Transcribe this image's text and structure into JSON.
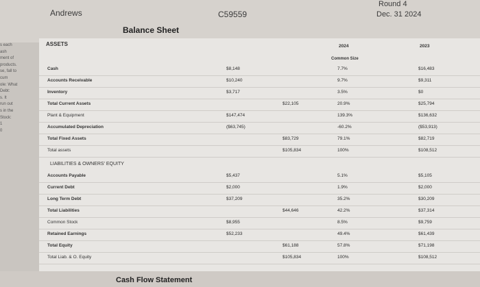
{
  "header": {
    "company": "Andrews",
    "id": "C59559",
    "round": "Round 4",
    "date": "Dec. 31 2024",
    "title": "Balance Sheet"
  },
  "side_fragments": [
    "s each",
    "ash",
    "ment of",
    "products.",
    "se, fall to",
    "cum",
    "ole: What",
    "Debt:",
    "s. It",
    "run out",
    "s in the",
    "Stock:",
    "1",
    "0"
  ],
  "sections": {
    "assets": "ASSETS",
    "liabilities": "LIABILITIES & OWNERS' EQUITY"
  },
  "columns": {
    "year_current": "2024",
    "common_size": "Common Size",
    "year_prior": "2023"
  },
  "rows": [
    {
      "label": "Cash",
      "v1": "$8,148",
      "v2": "",
      "pct": "7.7%",
      "prior": "$16,483"
    },
    {
      "label": "Accounts Receivable",
      "v1": "$10,240",
      "v2": "",
      "pct": "9.7%",
      "prior": "$9,311"
    },
    {
      "label": "Inventory",
      "v1": "$3,717",
      "v2": "",
      "pct": "3.5%",
      "prior": "$0"
    },
    {
      "label": "Total Current Assets",
      "v1": "",
      "v2": "$22,105",
      "pct": "20.9%",
      "prior": "$25,794"
    },
    {
      "label": "Plant & Equipment",
      "v1": "$147,474",
      "v2": "",
      "pct": "139.3%",
      "prior": "$136,632"
    },
    {
      "label": "Accumulated Depreciation",
      "v1": "($63,745)",
      "v2": "",
      "pct": "-60.2%",
      "prior": "($53,913)"
    },
    {
      "label": "Total Fixed Assets",
      "v1": "",
      "v2": "$83,729",
      "pct": "79.1%",
      "prior": "$82,719"
    },
    {
      "label": "Total assets",
      "v1": "",
      "v2": "$105,834",
      "pct": "100%",
      "prior": "$108,512"
    },
    {
      "label": "Accounts Payable",
      "v1": "$5,437",
      "v2": "",
      "pct": "5.1%",
      "prior": "$5,105"
    },
    {
      "label": "Current Debt",
      "v1": "$2,000",
      "v2": "",
      "pct": "1.9%",
      "prior": "$2,000"
    },
    {
      "label": "Long Term Debt",
      "v1": "$37,209",
      "v2": "",
      "pct": "35.2%",
      "prior": "$30,209"
    },
    {
      "label": "Total Liabilities",
      "v1": "",
      "v2": "$44,646",
      "pct": "42.2%",
      "prior": "$37,314"
    },
    {
      "label": "Common Stock",
      "v1": "$8,955",
      "v2": "",
      "pct": "8.5%",
      "prior": "$9,759"
    },
    {
      "label": "Retained Earnings",
      "v1": "$52,233",
      "v2": "",
      "pct": "49.4%",
      "prior": "$61,439"
    },
    {
      "label": "Total Equity",
      "v1": "",
      "v2": "$61,188",
      "pct": "57.8%",
      "prior": "$71,198"
    },
    {
      "label": "Total Liab. & O. Equity",
      "v1": "",
      "v2": "$105,834",
      "pct": "100%",
      "prior": "$108,512"
    }
  ],
  "footer": {
    "next_section": "Cash Flow Statement"
  }
}
